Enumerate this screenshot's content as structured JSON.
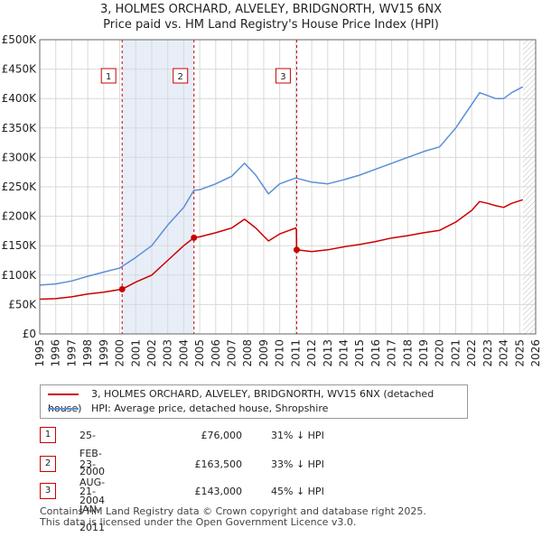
{
  "title_line1": "3, HOLMES ORCHARD, ALVELEY, BRIDGNORTH, WV15 6NX",
  "title_line2": "Price paid vs. HM Land Registry's House Price Index (HPI)",
  "colors": {
    "property": "#cc0000",
    "hpi": "#5b8fd6",
    "shade": "#e8eef8",
    "grid": "#d9d9d9",
    "marker_border": "#cc0000"
  },
  "chart_data": {
    "type": "line",
    "xlim": [
      1995,
      2026
    ],
    "ylim": [
      0,
      500000
    ],
    "y_ticks": [
      0,
      50000,
      100000,
      150000,
      200000,
      250000,
      300000,
      350000,
      400000,
      450000,
      500000
    ],
    "y_tick_labels": [
      "£0",
      "£50K",
      "£100K",
      "£150K",
      "£200K",
      "£250K",
      "£300K",
      "£350K",
      "£400K",
      "£450K",
      "£500K"
    ],
    "x_ticks": [
      1995,
      1996,
      1997,
      1998,
      1999,
      2000,
      2001,
      2002,
      2003,
      2004,
      2005,
      2006,
      2007,
      2008,
      2009,
      2010,
      2011,
      2012,
      2013,
      2014,
      2015,
      2016,
      2017,
      2018,
      2019,
      2020,
      2021,
      2022,
      2023,
      2024,
      2025,
      2026
    ],
    "shaded_ranges": [
      [
        2000.15,
        2004.64
      ],
      [
        2011.05,
        2011.1
      ]
    ],
    "forecast_start": 2025.2,
    "series": [
      {
        "name": "3, HOLMES ORCHARD, ALVELEY, BRIDGNORTH, WV15 6NX (detached house)",
        "color": "#cc0000",
        "x": [
          1995,
          1996,
          1997,
          1998,
          1999,
          2000.15,
          2001,
          2002,
          2003,
          2004,
          2004.64,
          2005,
          2006,
          2007,
          2007.8,
          2008.5,
          2009.3,
          2010,
          2011,
          2011.05,
          2011.06,
          2012,
          2013,
          2014,
          2015,
          2016,
          2017,
          2018,
          2019,
          2020,
          2021,
          2022,
          2022.5,
          2023,
          2023.5,
          2024,
          2024.5,
          2025.2
        ],
        "y": [
          59000,
          60000,
          63000,
          68000,
          71000,
          76000,
          88000,
          100000,
          125000,
          150000,
          163500,
          165000,
          172000,
          180000,
          195000,
          180000,
          158000,
          170000,
          180000,
          177000,
          143000,
          140000,
          143000,
          148000,
          152000,
          157000,
          163000,
          167000,
          172000,
          176000,
          190000,
          210000,
          225000,
          222000,
          218000,
          215000,
          222000,
          228000
        ]
      },
      {
        "name": "HPI: Average price, detached house, Shropshire",
        "color": "#5b8fd6",
        "x": [
          1995,
          1996,
          1997,
          1998,
          1999,
          2000,
          2001,
          2002,
          2003,
          2004,
          2004.64,
          2005,
          2006,
          2007,
          2007.8,
          2008.5,
          2009.3,
          2010,
          2011,
          2012,
          2013,
          2014,
          2015,
          2016,
          2017,
          2018,
          2019,
          2020,
          2021,
          2022,
          2022.5,
          2023,
          2023.5,
          2024,
          2024.5,
          2025.2
        ],
        "y": [
          83000,
          85000,
          90000,
          98000,
          105000,
          112000,
          130000,
          150000,
          185000,
          215000,
          244000,
          245000,
          255000,
          268000,
          290000,
          270000,
          238000,
          255000,
          265000,
          258000,
          255000,
          262000,
          270000,
          280000,
          290000,
          300000,
          310000,
          318000,
          350000,
          390000,
          410000,
          405000,
          400000,
          400000,
          410000,
          420000
        ]
      }
    ],
    "sales": [
      {
        "id": "1",
        "x": 2000.15,
        "y": 76000
      },
      {
        "id": "2",
        "x": 2004.64,
        "y": 163500
      },
      {
        "id": "3",
        "x": 2011.06,
        "y": 143000
      }
    ]
  },
  "legend": {
    "property": "3, HOLMES ORCHARD, ALVELEY, BRIDGNORTH, WV15 6NX (detached house)",
    "hpi": "HPI: Average price, detached house, Shropshire"
  },
  "sales_table": [
    {
      "num": "1",
      "date": "25-FEB-2000",
      "price": "£76,000",
      "hpi": "31% ↓ HPI"
    },
    {
      "num": "2",
      "date": "23-AUG-2004",
      "price": "£163,500",
      "hpi": "33% ↓ HPI"
    },
    {
      "num": "3",
      "date": "21-JAN-2011",
      "price": "£143,000",
      "hpi": "45% ↓ HPI"
    }
  ],
  "footer_line1": "Contains HM Land Registry data © Crown copyright and database right 2025.",
  "footer_line2": "This data is licensed under the Open Government Licence v3.0."
}
